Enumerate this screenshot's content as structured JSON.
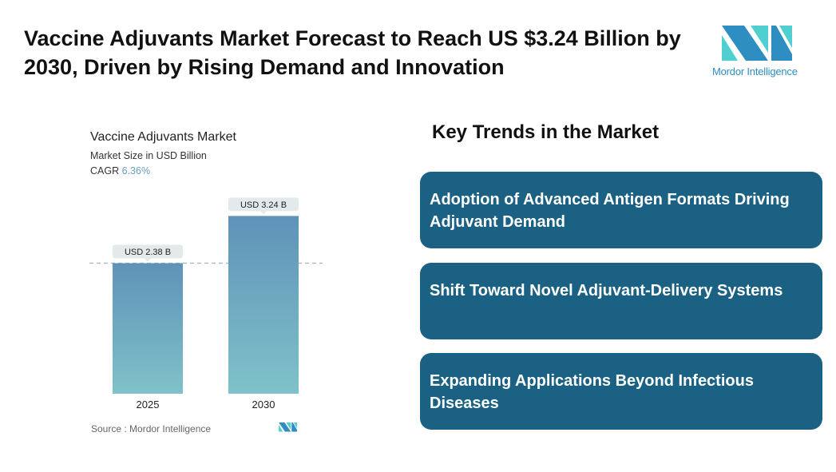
{
  "header": {
    "title": "Vaccine Adjuvants Market Forecast to Reach US $3.24 Billion by 2030, Driven by Rising Demand and Innovation",
    "logo_text": "Mordor Intelligence"
  },
  "chart_data": {
    "type": "bar",
    "title": "Vaccine Adjuvants Market",
    "subtitle": "Market Size in USD Billion",
    "cagr_label": "CAGR",
    "cagr_value": "6.36%",
    "categories": [
      "2025",
      "2030"
    ],
    "values": [
      2.38,
      3.24
    ],
    "data_labels": [
      "USD 2.38 B",
      "USD 3.24 B"
    ],
    "ylim": [
      0,
      3.24
    ],
    "reference_line": 2.38,
    "colors": {
      "bar_top": "#5f92b9",
      "bar_bottom": "#7fc2c9",
      "label_bg": "#e3eaec",
      "ref_line": "#9fb5bf"
    },
    "source": "Source :  Mordor Intelligence"
  },
  "trends": {
    "title": "Key Trends in the Market",
    "items": [
      "Adoption of Advanced Antigen Formats Driving Adjuvant Demand",
      "Shift Toward Novel Adjuvant-Delivery Systems",
      "Expanding Applications Beyond Infectious Diseases"
    ]
  }
}
